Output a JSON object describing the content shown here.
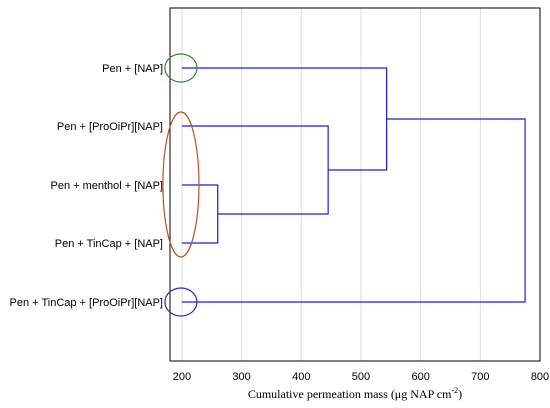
{
  "chart_data": {
    "type": "dendrogram",
    "title": "",
    "xlabel": "Cumulative permeation mass (μg NAP cm",
    "xlabel_sup": "-2",
    "xlabel_end": ")",
    "xlim": [
      180,
      800
    ],
    "x_ticks": [
      200,
      300,
      400,
      500,
      600,
      700,
      800
    ],
    "grid": true,
    "leaves": [
      "Pen + [NAP]",
      "Pen + [ProOiPr][NAP]",
      "Pen + menthol + [NAP]",
      "Pen + TinCap + [NAP]",
      "Pen + TinCap + [ProOiPr][NAP]"
    ],
    "leaf_base": 200,
    "merges": [
      {
        "id": "m1",
        "children": [
          2,
          3
        ],
        "height": 260
      },
      {
        "id": "m2",
        "children": [
          1,
          "m1"
        ],
        "height": 445
      },
      {
        "id": "m3",
        "children": [
          0,
          "m2"
        ],
        "height": 543
      },
      {
        "id": "m4",
        "children": [
          "m3",
          4
        ],
        "height": 775
      }
    ],
    "line_color": "#1f1fd0",
    "highlight_ellipses": [
      {
        "leaves": [
          0
        ],
        "color": "#2e8b2e"
      },
      {
        "leaves": [
          1,
          2,
          3
        ],
        "color": "#b5502a"
      },
      {
        "leaves": [
          4
        ],
        "color": "#2b2bb0"
      }
    ]
  }
}
